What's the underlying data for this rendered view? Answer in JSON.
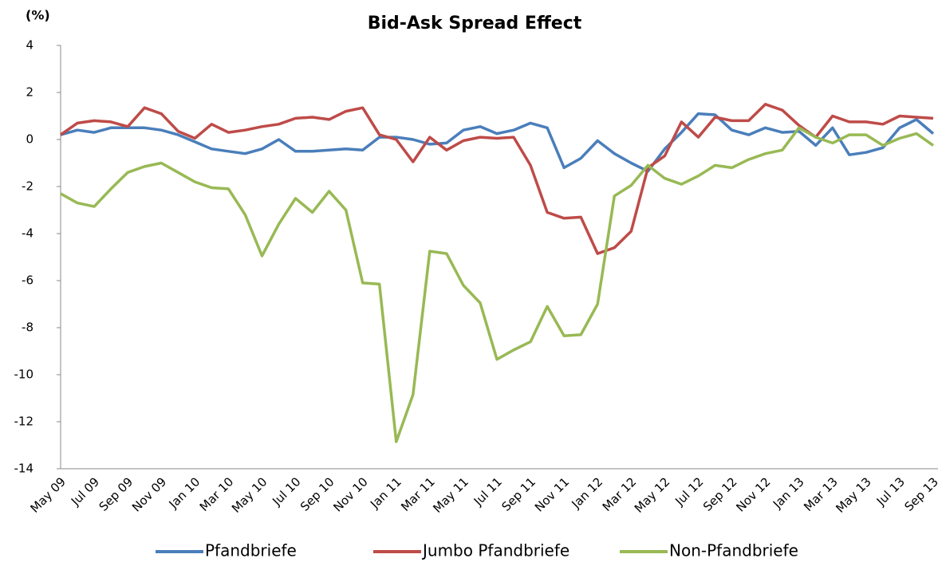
{
  "chart_data": {
    "type": "line",
    "title": "Bid-Ask Spread Effect",
    "y_label": "(%)",
    "categories": [
      "May 09",
      null,
      "Jul 09",
      null,
      "Sep 09",
      null,
      "Nov 09",
      null,
      "Jan 10",
      null,
      "Mar 10",
      null,
      "May 10",
      null,
      "Jul 10",
      null,
      "Sep 10",
      null,
      "Nov 10",
      null,
      "Jan 11",
      null,
      "Mar 11",
      null,
      "May 11",
      null,
      "Jul 11",
      null,
      "Sep 11",
      null,
      "Nov 11",
      null,
      "Jan 12",
      null,
      "Mar 12",
      null,
      "May 12",
      null,
      "Jul 12",
      null,
      "Sep 12",
      null,
      "Nov 12",
      null,
      "Jan 13",
      null,
      "Mar 13",
      null,
      "May 13",
      null,
      "Jul 13",
      null,
      "Sep 13"
    ],
    "series": [
      {
        "name": "Pfandbriefe",
        "color": "#4a7ebb",
        "values": [
          0.2,
          0.4,
          0.3,
          0.5,
          0.5,
          0.5,
          0.4,
          0.2,
          -0.1,
          -0.4,
          -0.5,
          -0.6,
          -0.4,
          0.0,
          -0.5,
          -0.5,
          -0.45,
          -0.4,
          -0.45,
          0.1,
          0.1,
          0.0,
          -0.2,
          -0.15,
          0.4,
          0.55,
          0.25,
          0.4,
          0.7,
          0.5,
          -1.2,
          -0.8,
          -0.05,
          -0.6,
          -1.0,
          -1.35,
          -0.4,
          0.3,
          1.1,
          1.05,
          0.4,
          0.2,
          0.5,
          0.3,
          0.35,
          -0.25,
          0.5,
          -0.65,
          -0.55,
          -0.35,
          0.5,
          0.85,
          0.25
        ]
      },
      {
        "name": "Jumbo Pfandbriefe",
        "color": "#be4b48",
        "values": [
          0.2,
          0.7,
          0.8,
          0.75,
          0.55,
          1.35,
          1.1,
          0.35,
          0.05,
          0.65,
          0.3,
          0.4,
          0.55,
          0.65,
          0.9,
          0.95,
          0.85,
          1.2,
          1.35,
          0.2,
          0.0,
          -0.95,
          0.1,
          -0.45,
          -0.05,
          0.1,
          0.05,
          0.1,
          -1.1,
          -3.1,
          -3.35,
          -3.3,
          -4.85,
          -4.6,
          -3.9,
          -1.2,
          -0.7,
          0.75,
          0.1,
          0.95,
          0.8,
          0.8,
          1.5,
          1.25,
          0.6,
          0.1,
          1.0,
          0.75,
          0.75,
          0.65,
          1.0,
          0.95,
          0.9
        ]
      },
      {
        "name": "Non-Pfandbriefe",
        "color": "#98b954",
        "values": [
          -2.3,
          -2.7,
          -2.85,
          -2.1,
          -1.4,
          -1.15,
          -1.0,
          -1.4,
          -1.8,
          -2.05,
          -2.1,
          -3.2,
          -4.95,
          -3.6,
          -2.5,
          -3.1,
          -2.2,
          -3.0,
          -6.1,
          -6.15,
          -12.85,
          -10.85,
          -4.75,
          -4.85,
          -6.2,
          -6.95,
          -9.35,
          -8.95,
          -8.6,
          -7.1,
          -8.35,
          -8.3,
          -7.0,
          -2.4,
          -1.95,
          -1.1,
          -1.65,
          -1.9,
          -1.55,
          -1.1,
          -1.2,
          -0.85,
          -0.6,
          -0.45,
          0.5,
          0.1,
          -0.15,
          0.2,
          0.2,
          -0.25,
          0.05,
          0.25,
          -0.25
        ]
      }
    ],
    "ylim": [
      -14,
      4
    ],
    "yticks": [
      -14,
      -12,
      -10,
      -8,
      -6,
      -4,
      -2,
      0,
      2,
      4
    ],
    "grid": false,
    "legend": "bottom"
  }
}
